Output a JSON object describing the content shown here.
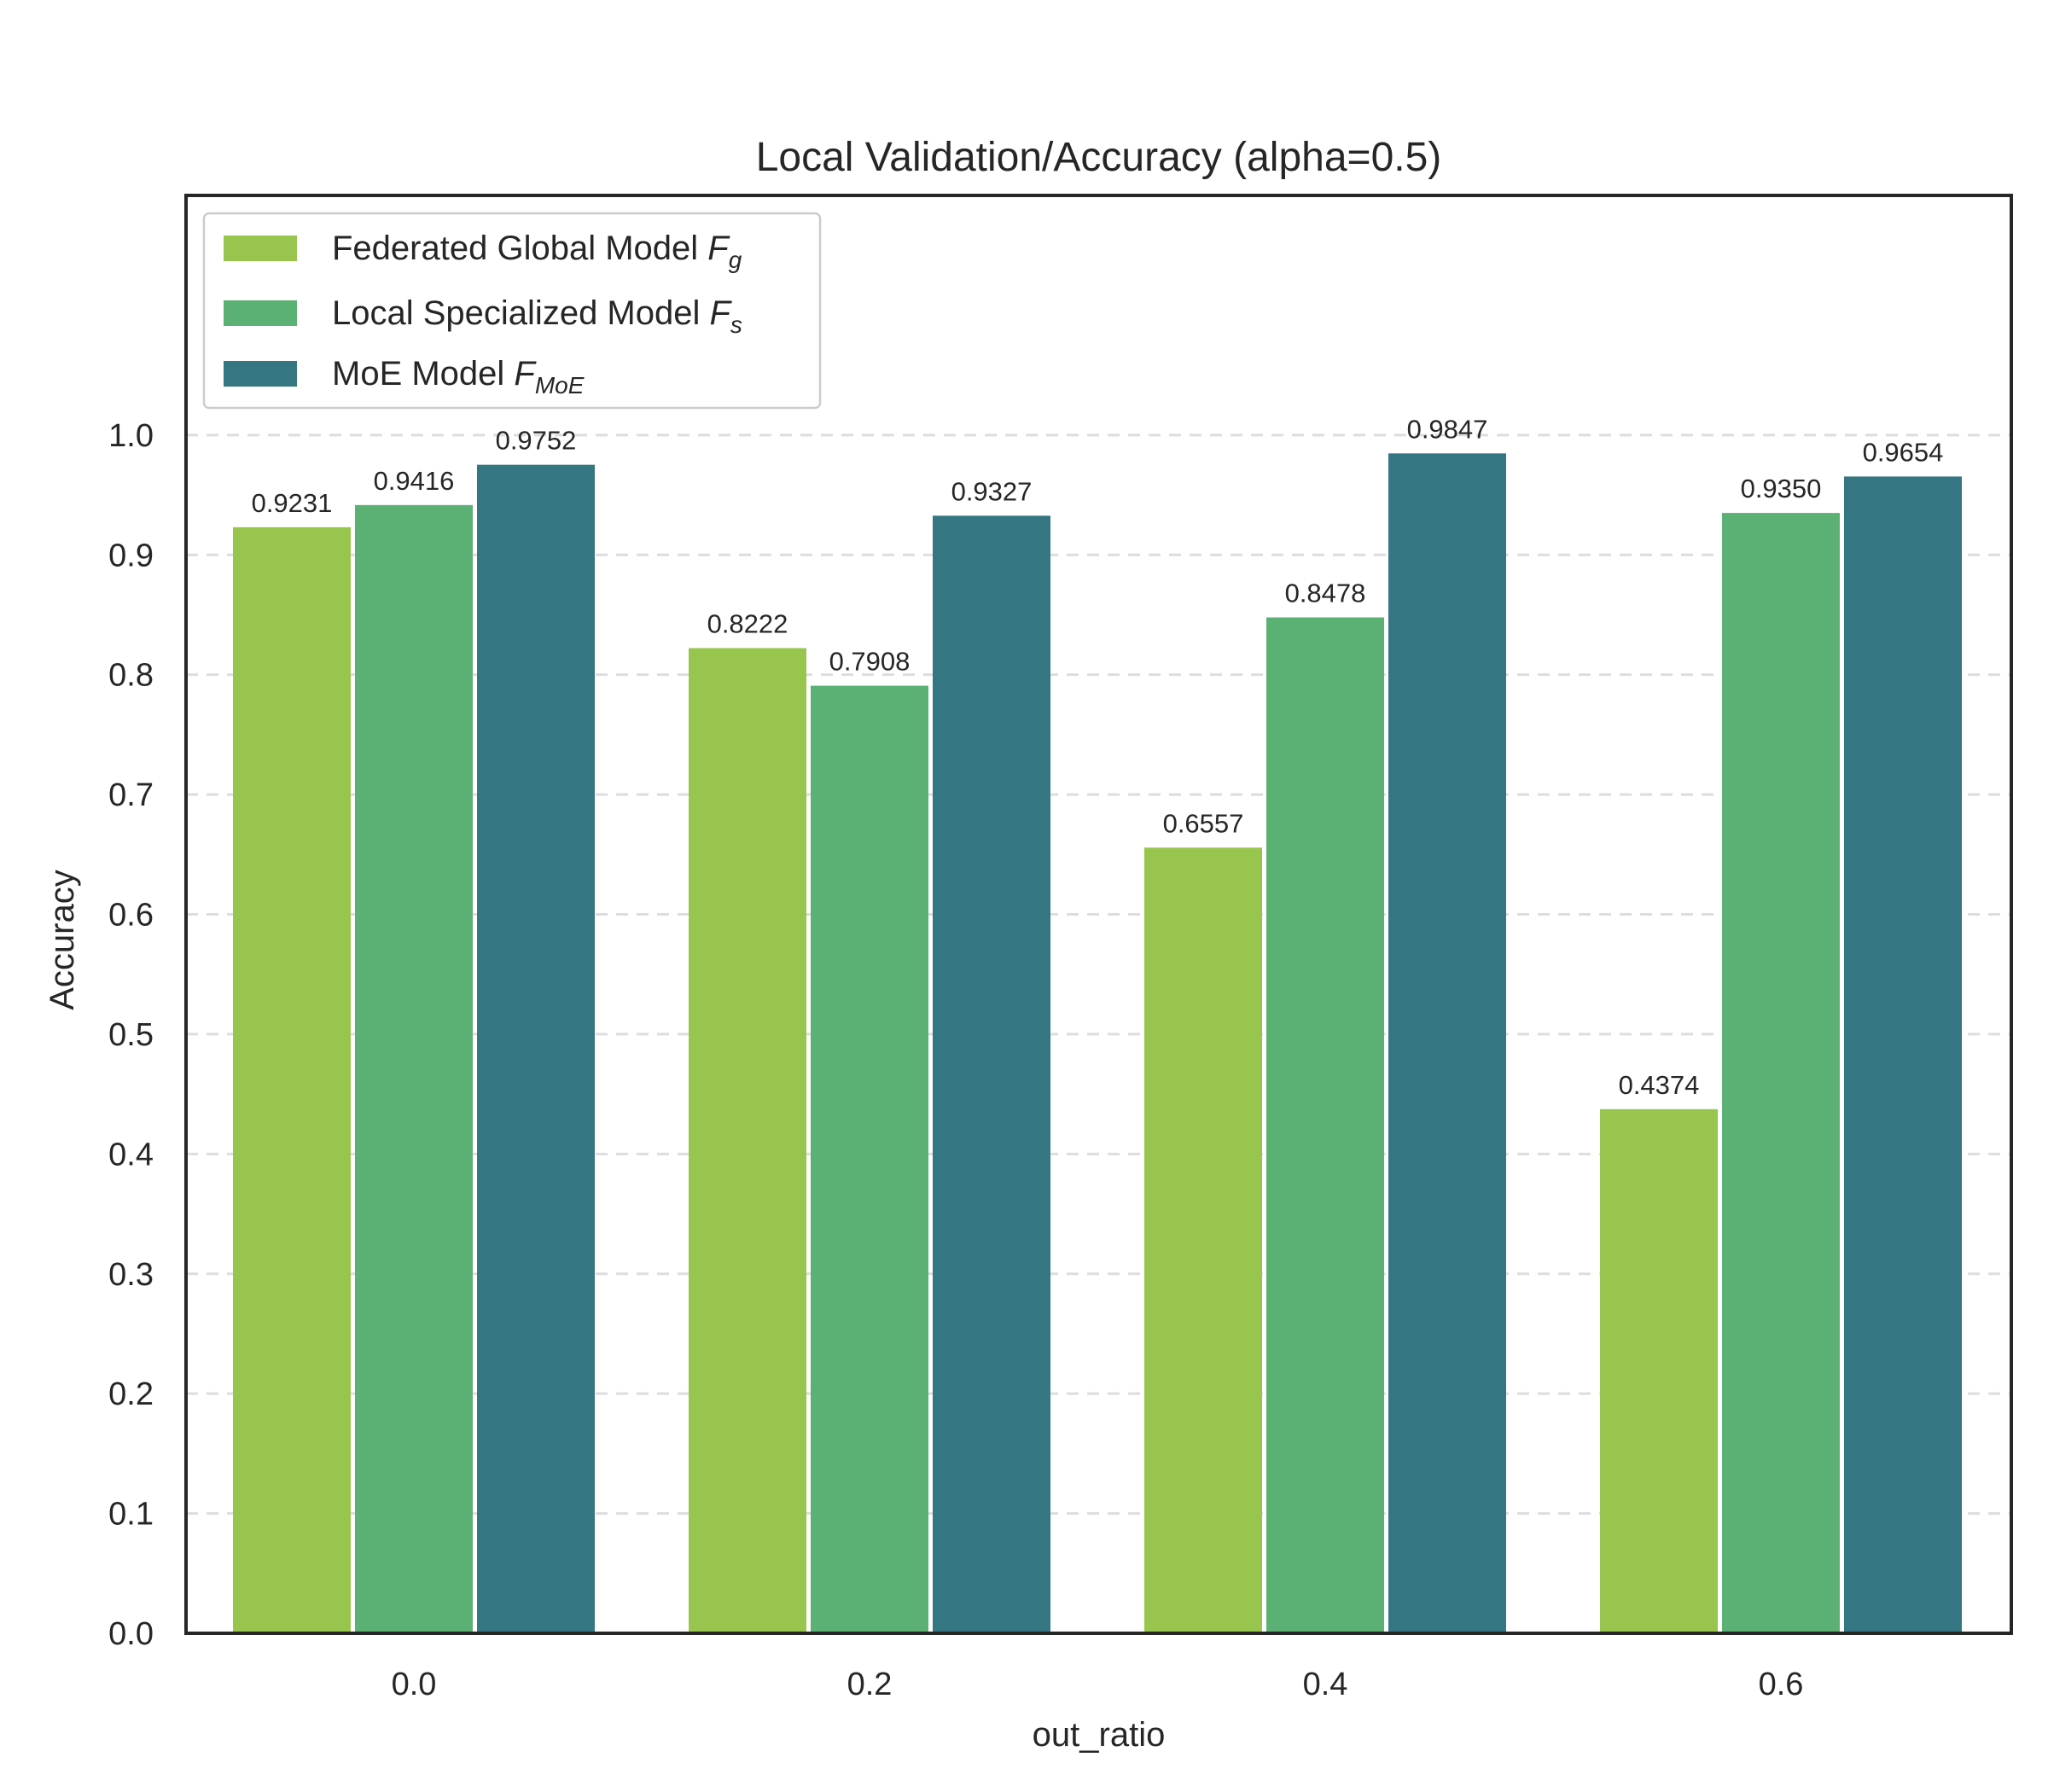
{
  "chart_data": {
    "type": "bar",
    "title": "Local Validation/Accuracy (alpha=0.5)",
    "xlabel": "out_ratio",
    "ylabel": "Accuracy",
    "categories": [
      "0.0",
      "0.2",
      "0.4",
      "0.6"
    ],
    "ylim": [
      0,
      1.2
    ],
    "yticks": [
      "0.0",
      "0.1",
      "0.2",
      "0.3",
      "0.4",
      "0.5",
      "0.6",
      "0.7",
      "0.8",
      "0.9",
      "1.0"
    ],
    "grid": "horizontal dashed",
    "legend_position": "top-left",
    "series": [
      {
        "name": "Federated Global Model F_g",
        "legend_text": "Federated Global Model ",
        "legend_symbol": "F",
        "legend_subscript": "g",
        "color": "#98c54d",
        "values": [
          0.9231,
          0.8222,
          0.6557,
          0.4374
        ],
        "labels": [
          "0.9231",
          "0.8222",
          "0.6557",
          "0.4374"
        ]
      },
      {
        "name": "Local Specialized Model F_s",
        "legend_text": "Local Specialized Model ",
        "legend_symbol": "F",
        "legend_subscript": "s",
        "color": "#5bb173",
        "values": [
          0.9416,
          0.7908,
          0.8478,
          0.935
        ],
        "labels": [
          "0.9416",
          "0.7908",
          "0.8478",
          "0.9350"
        ]
      },
      {
        "name": "MoE Model F_MoE",
        "legend_text": "MoE Model ",
        "legend_symbol": "F",
        "legend_subscript": "MoE",
        "color": "#347681",
        "values": [
          0.9752,
          0.9327,
          0.9847,
          0.9654
        ],
        "labels": [
          "0.9752",
          "0.9327",
          "0.9847",
          "0.9654"
        ]
      }
    ]
  }
}
